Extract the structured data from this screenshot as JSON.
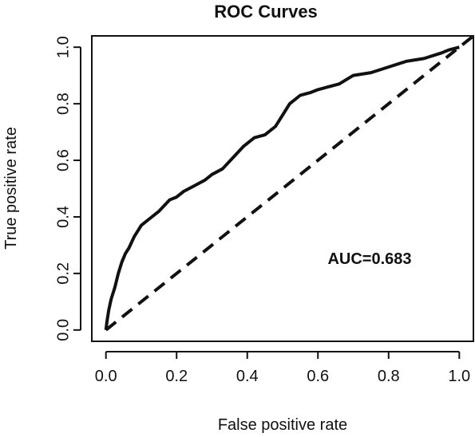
{
  "chart_data": {
    "type": "line",
    "title": "ROC Curves",
    "xlabel": "False positive rate",
    "ylabel": "True positive rate",
    "xlim": [
      -0.04,
      1.04
    ],
    "ylim": [
      -0.04,
      1.04
    ],
    "xticks": [
      "0.0",
      "0.2",
      "0.4",
      "0.6",
      "0.8",
      "1.0"
    ],
    "yticks": [
      "0.0",
      "0.2",
      "0.4",
      "0.6",
      "0.8",
      "1.0"
    ],
    "grid": false,
    "annotation": "AUC=0.683",
    "series": [
      {
        "style": "solid",
        "x": [
          0.0,
          0.003,
          0.008,
          0.015,
          0.025,
          0.035,
          0.045,
          0.055,
          0.065,
          0.08,
          0.1,
          0.12,
          0.15,
          0.18,
          0.2,
          0.22,
          0.25,
          0.28,
          0.3,
          0.33,
          0.36,
          0.39,
          0.42,
          0.45,
          0.48,
          0.5,
          0.52,
          0.55,
          0.58,
          0.6,
          0.63,
          0.66,
          0.7,
          0.75,
          0.8,
          0.85,
          0.9,
          0.95,
          0.97,
          1.0
        ],
        "y": [
          0.0,
          0.03,
          0.07,
          0.11,
          0.15,
          0.2,
          0.24,
          0.27,
          0.29,
          0.33,
          0.37,
          0.39,
          0.42,
          0.46,
          0.47,
          0.49,
          0.51,
          0.53,
          0.55,
          0.57,
          0.61,
          0.65,
          0.68,
          0.69,
          0.72,
          0.76,
          0.8,
          0.83,
          0.84,
          0.85,
          0.86,
          0.87,
          0.9,
          0.91,
          0.93,
          0.95,
          0.96,
          0.98,
          0.99,
          1.0
        ]
      },
      {
        "style": "dashed",
        "x": [
          0,
          1.04
        ],
        "y": [
          0,
          1.04
        ]
      }
    ]
  }
}
